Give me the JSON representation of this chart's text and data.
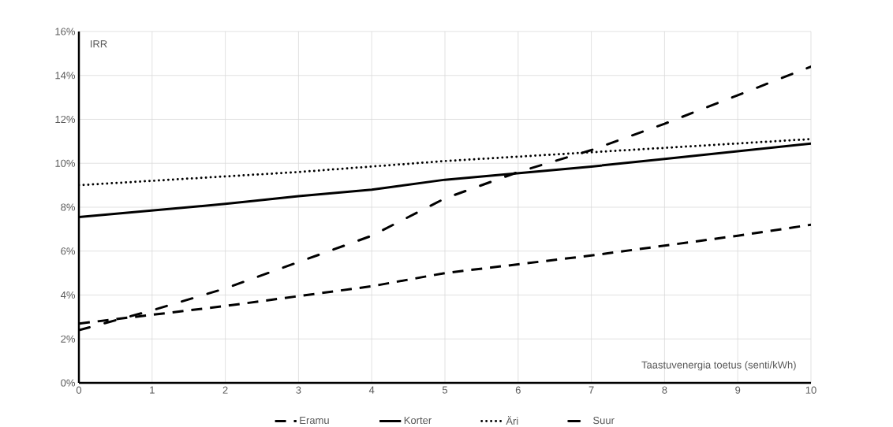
{
  "chart_data": {
    "type": "line",
    "xlabel": "Taastuvenergia toetus (senti/kWh)",
    "ylabel": "IRR",
    "x": [
      0,
      1,
      2,
      3,
      4,
      5,
      6,
      7,
      8,
      9,
      10
    ],
    "series": [
      {
        "name": "Eramu",
        "color": "#000000",
        "line_style": "dashed",
        "values": [
          2.7,
          3.1,
          3.5,
          3.95,
          4.4,
          5.0,
          5.4,
          5.8,
          6.25,
          6.7,
          7.2
        ]
      },
      {
        "name": "Korter",
        "color": "#000000",
        "line_style": "solid",
        "values": [
          7.55,
          7.85,
          8.15,
          8.5,
          8.8,
          9.25,
          9.55,
          9.85,
          10.2,
          10.55,
          10.9
        ]
      },
      {
        "name": "Äri",
        "color": "#000000",
        "line_style": "dotted",
        "values": [
          9.0,
          9.2,
          9.4,
          9.6,
          9.85,
          10.1,
          10.3,
          10.5,
          10.7,
          10.9,
          11.1
        ]
      },
      {
        "name": "Suur",
        "color": "#000000",
        "line_style": "dashdot",
        "values": [
          2.4,
          3.3,
          4.3,
          5.5,
          6.7,
          8.4,
          9.6,
          10.6,
          11.8,
          13.1,
          14.4
        ]
      }
    ],
    "xlim": [
      0,
      10
    ],
    "xticks": [
      0,
      1,
      2,
      3,
      4,
      5,
      6,
      7,
      8,
      9,
      10
    ],
    "ylim": [
      0,
      16
    ],
    "yticks": [
      {
        "value": 0,
        "label": "0%"
      },
      {
        "value": 2,
        "label": "2%"
      },
      {
        "value": 4,
        "label": "4%"
      },
      {
        "value": 6,
        "label": "6%"
      },
      {
        "value": 8,
        "label": "8%"
      },
      {
        "value": 10,
        "label": "10%"
      },
      {
        "value": 12,
        "label": "12%"
      },
      {
        "value": 14,
        "label": "14%"
      },
      {
        "value": 16,
        "label": "16%"
      }
    ],
    "grid": true,
    "legend": "bottom",
    "marker": "none"
  }
}
